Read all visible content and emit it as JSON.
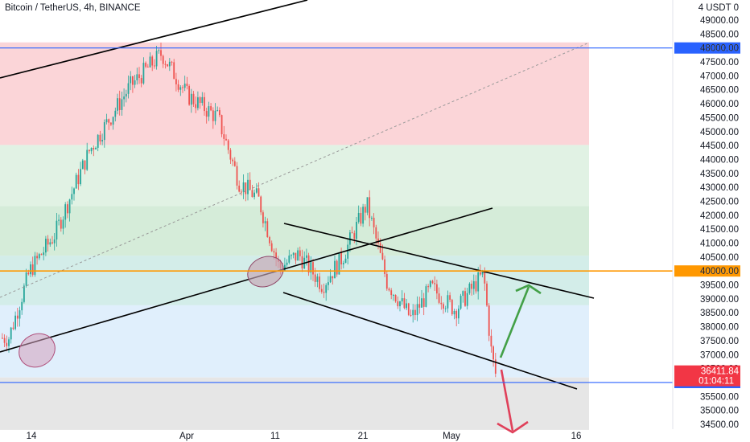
{
  "header": {
    "title": "Bitcoin / TetherUS, 4h, BINANCE",
    "currency": "4 USDT 0"
  },
  "colors": {
    "up": "#26a69a",
    "down": "#ef5350",
    "zone_red": "#fbd5d8",
    "zone_green": "#e1f2e4",
    "zone_green_dark": "#d5ecd9",
    "zone_teal": "#d3ede9",
    "zone_blue": "#e0effc",
    "zone_gray": "#e6e6e6",
    "level_blue": "#2962ff",
    "level_orange": "#ff9800",
    "arrow_green": "#43a047",
    "arrow_red": "#e0405a",
    "ellipse": "#d3a0bc"
  },
  "chart_data": {
    "type": "candlestick",
    "symbol": "Bitcoin / TetherUS",
    "interval": "4h",
    "exchange": "BINANCE",
    "quote_currency": "USDT",
    "ylim": [
      34300,
      49300
    ],
    "y_ticks": [
      34500,
      35000,
      35500,
      36000,
      36500,
      37000,
      37500,
      38000,
      38500,
      39000,
      39500,
      40000,
      40500,
      41000,
      41500,
      42000,
      42500,
      43000,
      43500,
      44000,
      44500,
      45000,
      45500,
      46000,
      46500,
      47000,
      47500,
      48000,
      48500,
      49000
    ],
    "x_ticks": [
      "14",
      "Apr",
      "11",
      "21",
      "May",
      "16"
    ],
    "series": [
      {
        "name": "Bitcoin / TetherUS",
        "x": [
          "Mar 14",
          "Mar 17",
          "Mar 20",
          "Mar 24",
          "Mar 27",
          "Mar 29",
          "Apr 1",
          "Apr 5",
          "Apr 7",
          "Apr 9",
          "Apr 11",
          "Apr 14",
          "Apr 17",
          "Apr 19",
          "Apr 21",
          "Apr 24",
          "Apr 26",
          "Apr 28",
          "May 1",
          "May 4",
          "May 5",
          "May 6"
        ],
        "close": [
          37600,
          40000,
          41300,
          44300,
          46600,
          47800,
          46300,
          45500,
          43200,
          42600,
          40100,
          40600,
          39500,
          40500,
          42400,
          39600,
          38300,
          39400,
          38600,
          39900,
          37000,
          36300
        ]
      }
    ],
    "horizontal_levels": [
      {
        "price": 48000,
        "label": "48000.00",
        "color": "#2962ff"
      },
      {
        "price": 40000,
        "label": "40000.00",
        "color": "#ff9800"
      },
      {
        "price": 36000,
        "label": "36000.00",
        "color": "#2962ff"
      }
    ],
    "last_price": {
      "price": 36411.84,
      "label": "36411.84",
      "countdown": "01:04:11"
    },
    "zones": [
      {
        "from": 44520,
        "to": 48200,
        "color": "red"
      },
      {
        "from": 42330,
        "to": 44520,
        "color": "green"
      },
      {
        "from": 40550,
        "to": 42330,
        "color": "green_dark"
      },
      {
        "from": 38770,
        "to": 40550,
        "color": "teal"
      },
      {
        "from": 36180,
        "to": 38770,
        "color": "blue"
      },
      {
        "from": 34300,
        "to": 36180,
        "color": "gray"
      }
    ]
  }
}
